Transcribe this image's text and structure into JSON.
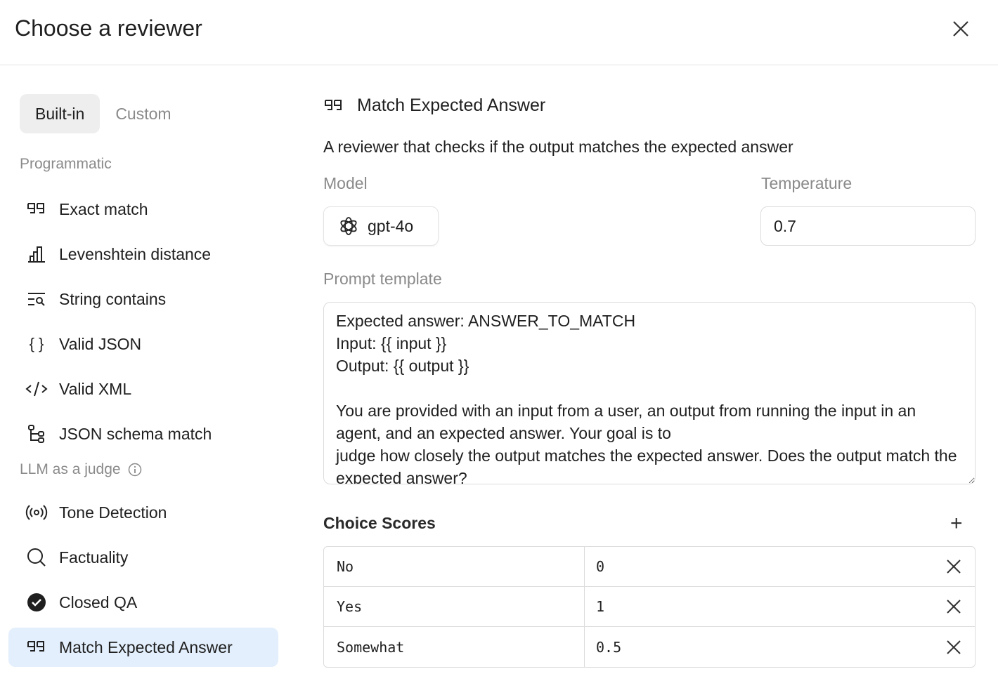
{
  "dialog": {
    "title": "Choose a reviewer"
  },
  "tabs": [
    {
      "label": "Built-in",
      "active": true
    },
    {
      "label": "Custom",
      "active": false
    }
  ],
  "sidebar": {
    "programmatic_label": "Programmatic",
    "programmatic": [
      {
        "label": "Exact match",
        "icon": "quote-icon"
      },
      {
        "label": "Levenshtein distance",
        "icon": "bar-chart-icon"
      },
      {
        "label": "String contains",
        "icon": "text-search-icon"
      },
      {
        "label": "Valid JSON",
        "icon": "braces-icon"
      },
      {
        "label": "Valid XML",
        "icon": "code-icon"
      },
      {
        "label": "JSON schema match",
        "icon": "tree-icon"
      }
    ],
    "llm_label": "LLM as a judge",
    "llm": [
      {
        "label": "Tone Detection",
        "icon": "broadcast-icon"
      },
      {
        "label": "Factuality",
        "icon": "search-icon"
      },
      {
        "label": "Closed QA",
        "icon": "check-circle-icon"
      },
      {
        "label": "Match Expected Answer",
        "icon": "quote-icon",
        "selected": true
      }
    ]
  },
  "detail": {
    "title": "Match Expected Answer",
    "description": "A reviewer that checks if the output matches the expected answer",
    "model_label": "Model",
    "model": "gpt-4o",
    "temperature_label": "Temperature",
    "temperature": "0.7",
    "prompt_label": "Prompt template",
    "prompt": "Expected answer: ANSWER_TO_MATCH\nInput: {{ input }}\nOutput: {{ output }}\n\nYou are provided with an input from a user, an output from running the input in an agent, and an expected answer. Your goal is to\njudge how closely the output matches the expected answer. Does the output match the expected answer?",
    "choice_scores_label": "Choice Scores",
    "choice_scores": [
      {
        "choice": "No",
        "score": "0"
      },
      {
        "choice": "Yes",
        "score": "1"
      },
      {
        "choice": "Somewhat",
        "score": "0.5"
      }
    ]
  },
  "colors": {
    "selected_bg": "#e3effc",
    "tab_active_bg": "#eeeeee"
  }
}
